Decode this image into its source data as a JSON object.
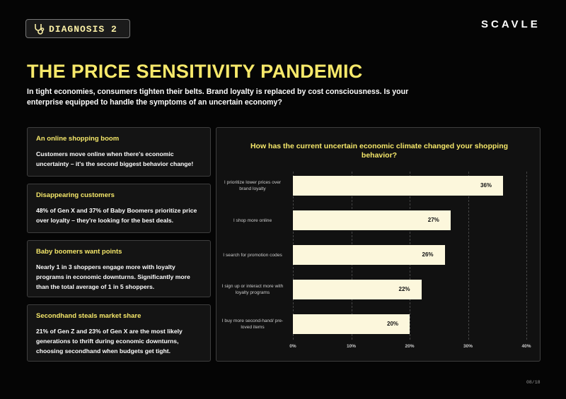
{
  "badge": "DIAGNOSIS 2",
  "logo": "SCAVLE",
  "header": {
    "title": "THE PRICE SENSITIVITY PANDEMIC",
    "subtitle": "In tight economies, consumers tighten their belts. Brand loyalty is replaced by cost consciousness. Is your enterprise equipped to handle the symptoms of an uncertain economy?"
  },
  "cards": [
    {
      "title": "An online shopping boom",
      "text": "Customers move online when there's economic uncertainty – it's the second biggest behavior change!"
    },
    {
      "title": "Disappearing customers",
      "text": "48% of Gen X and 37% of Baby Boomers prioritize price over loyalty – they're looking for the best deals."
    },
    {
      "title": "Baby boomers want points",
      "text": "Nearly 1 in 3 shoppers engage more with loyalty programs in economic downturns. Significantly more than the total average of 1 in 5 shoppers."
    },
    {
      "title": "Secondhand steals market share",
      "text": "21% of Gen Z and 23% of Gen X are the most likely generations to thrift during economic downturns, choosing secondhand when budgets get tight."
    }
  ],
  "chart_data": {
    "type": "hbar",
    "title": "How has the current uncertain economic climate changed your shopping behavior?",
    "categories": [
      "I prioritize lower prices over brand loyalty",
      "I shop more online",
      "I search for promotion codes",
      "I sign up or interact more with loyalty programs",
      "I buy more second-hand/ pre-loved items"
    ],
    "values": [
      36,
      27,
      26,
      22,
      20
    ],
    "value_labels": [
      "36%",
      "27%",
      "26%",
      "22%",
      "20%"
    ],
    "color": "#fcf7dc",
    "xlim": [
      0,
      40
    ],
    "xticks": [
      {
        "value": 0,
        "label": "0%"
      },
      {
        "value": 10,
        "label": "10%"
      },
      {
        "value": 20,
        "label": "20%"
      },
      {
        "value": 30,
        "label": "30%"
      },
      {
        "value": 40,
        "label": "40%"
      }
    ],
    "grid": true
  },
  "page_number": "08/18"
}
